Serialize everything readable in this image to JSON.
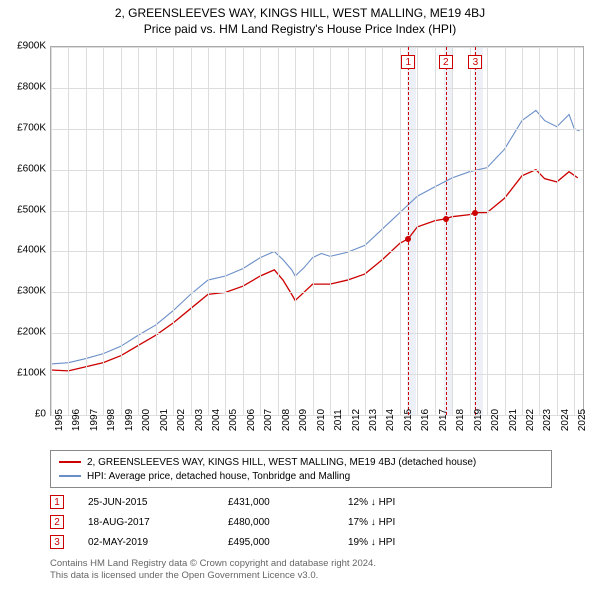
{
  "title_line1": "2, GREENSLEEVES WAY, KINGS HILL, WEST MALLING, ME19 4BJ",
  "title_line2": "Price paid vs. HM Land Registry's House Price Index (HPI)",
  "chart": {
    "type": "line",
    "x_min": 1995,
    "x_max": 2025.5,
    "y_min": 0,
    "y_max": 900000,
    "y_ticks": [
      0,
      100000,
      200000,
      300000,
      400000,
      500000,
      600000,
      700000,
      800000,
      900000
    ],
    "y_tick_labels": [
      "£0",
      "£100K",
      "£200K",
      "£300K",
      "£400K",
      "£500K",
      "£600K",
      "£700K",
      "£800K",
      "£900K"
    ],
    "x_ticks": [
      1995,
      1996,
      1997,
      1998,
      1999,
      2000,
      2001,
      2002,
      2003,
      2004,
      2005,
      2006,
      2007,
      2008,
      2009,
      2010,
      2011,
      2012,
      2013,
      2014,
      2015,
      2016,
      2017,
      2018,
      2019,
      2020,
      2021,
      2022,
      2023,
      2024,
      2025
    ],
    "shaded_bands": [
      {
        "from": 2015.4,
        "to": 2015.9
      },
      {
        "from": 2017.55,
        "to": 2018.05
      },
      {
        "from": 2019.25,
        "to": 2019.75
      }
    ],
    "grid_color": "#dddddd",
    "background_color": "#ffffff",
    "shade_color": "#e8eef5",
    "series": [
      {
        "name": "red",
        "color": "#cc0000",
        "width": 1.3,
        "label": "2, GREENSLEEVES WAY, KINGS HILL, WEST MALLING, ME19 4BJ (detached house)",
        "points": [
          [
            1995.0,
            110000
          ],
          [
            1996.0,
            108000
          ],
          [
            1997.0,
            118000
          ],
          [
            1998.0,
            128000
          ],
          [
            1999.0,
            145000
          ],
          [
            2000.0,
            170000
          ],
          [
            2001.0,
            195000
          ],
          [
            2002.0,
            225000
          ],
          [
            2003.0,
            260000
          ],
          [
            2004.0,
            295000
          ],
          [
            2005.0,
            300000
          ],
          [
            2006.0,
            315000
          ],
          [
            2007.0,
            340000
          ],
          [
            2007.8,
            355000
          ],
          [
            2008.3,
            330000
          ],
          [
            2008.8,
            295000
          ],
          [
            2009.0,
            280000
          ],
          [
            2009.5,
            300000
          ],
          [
            2010.0,
            320000
          ],
          [
            2011.0,
            320000
          ],
          [
            2012.0,
            330000
          ],
          [
            2013.0,
            345000
          ],
          [
            2014.0,
            380000
          ],
          [
            2015.0,
            420000
          ],
          [
            2015.48,
            431000
          ],
          [
            2016.0,
            460000
          ],
          [
            2017.0,
            475000
          ],
          [
            2017.63,
            480000
          ],
          [
            2018.0,
            485000
          ],
          [
            2019.0,
            490000
          ],
          [
            2019.33,
            495000
          ],
          [
            2020.0,
            495000
          ],
          [
            2021.0,
            530000
          ],
          [
            2022.0,
            585000
          ],
          [
            2022.8,
            600000
          ],
          [
            2023.3,
            578000
          ],
          [
            2024.0,
            570000
          ],
          [
            2024.7,
            595000
          ],
          [
            2025.2,
            580000
          ]
        ]
      },
      {
        "name": "blue",
        "color": "#6a8fc7",
        "width": 1.1,
        "label": "HPI: Average price, detached house, Tonbridge and Malling",
        "points": [
          [
            1995.0,
            125000
          ],
          [
            1996.0,
            128000
          ],
          [
            1997.0,
            138000
          ],
          [
            1998.0,
            150000
          ],
          [
            1999.0,
            168000
          ],
          [
            2000.0,
            195000
          ],
          [
            2001.0,
            220000
          ],
          [
            2002.0,
            255000
          ],
          [
            2003.0,
            295000
          ],
          [
            2004.0,
            330000
          ],
          [
            2005.0,
            340000
          ],
          [
            2006.0,
            358000
          ],
          [
            2007.0,
            385000
          ],
          [
            2007.8,
            400000
          ],
          [
            2008.3,
            380000
          ],
          [
            2008.8,
            355000
          ],
          [
            2009.0,
            340000
          ],
          [
            2009.5,
            360000
          ],
          [
            2010.0,
            385000
          ],
          [
            2010.5,
            395000
          ],
          [
            2011.0,
            388000
          ],
          [
            2012.0,
            398000
          ],
          [
            2013.0,
            415000
          ],
          [
            2014.0,
            455000
          ],
          [
            2015.0,
            495000
          ],
          [
            2016.0,
            535000
          ],
          [
            2017.0,
            558000
          ],
          [
            2018.0,
            580000
          ],
          [
            2019.0,
            595000
          ],
          [
            2020.0,
            605000
          ],
          [
            2021.0,
            650000
          ],
          [
            2022.0,
            720000
          ],
          [
            2022.8,
            745000
          ],
          [
            2023.3,
            720000
          ],
          [
            2024.0,
            705000
          ],
          [
            2024.7,
            735000
          ],
          [
            2025.0,
            700000
          ],
          [
            2025.3,
            695000
          ]
        ]
      }
    ],
    "markers": [
      {
        "n": "1",
        "x": 2015.48,
        "y": 431000
      },
      {
        "n": "2",
        "x": 2017.63,
        "y": 480000
      },
      {
        "n": "3",
        "x": 2019.33,
        "y": 495000
      }
    ],
    "marker_box_color": "#cc0000"
  },
  "legend": {
    "items": [
      {
        "color": "#cc0000",
        "label": "2, GREENSLEEVES WAY, KINGS HILL, WEST MALLING, ME19 4BJ (detached house)"
      },
      {
        "color": "#6a8fc7",
        "label": "HPI: Average price, detached house, Tonbridge and Malling"
      }
    ]
  },
  "events": [
    {
      "n": "1",
      "date": "25-JUN-2015",
      "price": "£431,000",
      "diff": "12% ↓ HPI"
    },
    {
      "n": "2",
      "date": "18-AUG-2017",
      "price": "£480,000",
      "diff": "17% ↓ HPI"
    },
    {
      "n": "3",
      "date": "02-MAY-2019",
      "price": "£495,000",
      "diff": "19% ↓ HPI"
    }
  ],
  "footer_line1": "Contains HM Land Registry data © Crown copyright and database right 2024.",
  "footer_line2": "This data is licensed under the Open Government Licence v3.0."
}
